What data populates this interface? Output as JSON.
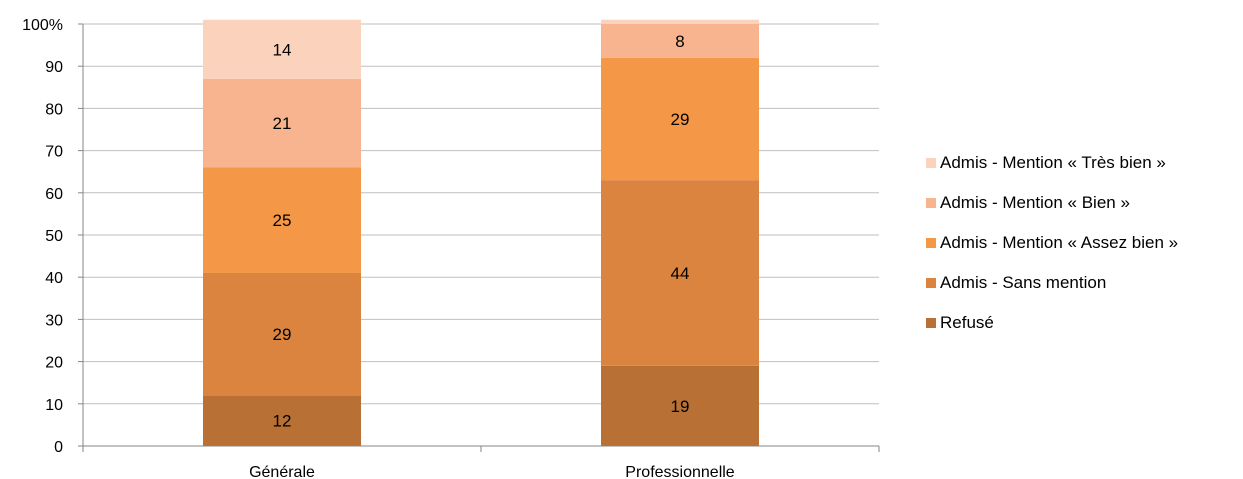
{
  "chart_data": {
    "type": "bar",
    "stacked": true,
    "categories": [
      "Générale",
      "Professionnelle"
    ],
    "series": [
      {
        "name": "Refusé",
        "color": "#B87035",
        "values": [
          12,
          19
        ]
      },
      {
        "name": "Admis - Sans mention",
        "color": "#DB843F",
        "values": [
          29,
          44
        ]
      },
      {
        "name": "Admis - Mention « Assez bien »",
        "color": "#F49848",
        "values": [
          25,
          29
        ]
      },
      {
        "name": "Admis - Mention « Bien »",
        "color": "#F8B48E",
        "values": [
          21,
          8
        ]
      },
      {
        "name": "Admis - Mention « Très bien »",
        "color": "#FBD2BC",
        "values": [
          14,
          1
        ]
      }
    ],
    "data_labels": [
      [
        "12",
        "19"
      ],
      [
        "29",
        "44"
      ],
      [
        "25",
        "29"
      ],
      [
        "21",
        "8"
      ],
      [
        "14",
        ""
      ]
    ],
    "ylim": [
      0,
      100
    ],
    "yticks": [
      "0",
      "10",
      "20",
      "30",
      "40",
      "50",
      "60",
      "70",
      "80",
      "90",
      "100%"
    ],
    "grid": true,
    "legend_position": "right",
    "title": "",
    "xlabel": "",
    "ylabel": ""
  }
}
